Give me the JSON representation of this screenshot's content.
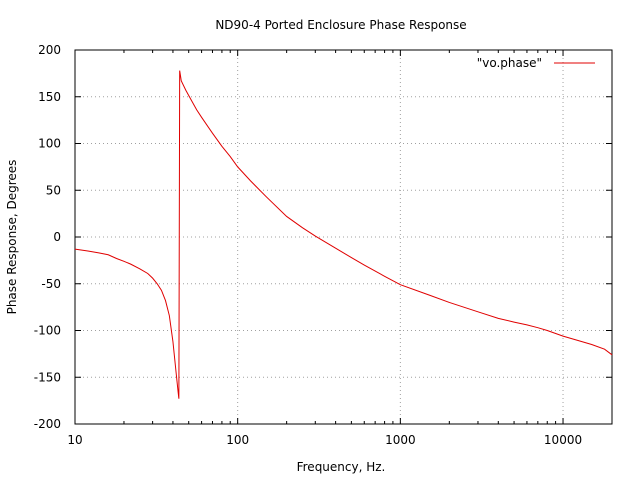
{
  "chart_data": {
    "type": "line",
    "title": "ND90-4 Ported Enclosure Phase Response",
    "xlabel": "Frequency, Hz.",
    "ylabel": "Phase Response, Degrees",
    "xscale": "log",
    "xlim": [
      10,
      20000
    ],
    "ylim": [
      -200,
      200
    ],
    "x_ticks": [
      10,
      100,
      1000,
      10000
    ],
    "x_tick_labels": [
      "10",
      "100",
      "1000",
      "10000"
    ],
    "y_ticks": [
      -200,
      -150,
      -100,
      -50,
      0,
      50,
      100,
      150,
      200
    ],
    "y_tick_labels": [
      "-200",
      "-150",
      "-100",
      "-50",
      "0",
      "50",
      "100",
      "150",
      "200"
    ],
    "grid": true,
    "legend_position": "top-right",
    "series": [
      {
        "name": "\"vo.phase\"",
        "color": "#e00000",
        "x": [
          10,
          12,
          14,
          16,
          18,
          20,
          22,
          25,
          28,
          30,
          32,
          34,
          36,
          38,
          40,
          42,
          43,
          43.5,
          44,
          45,
          48,
          52,
          56,
          60,
          70,
          80,
          90,
          100,
          120,
          150,
          200,
          250,
          300,
          350,
          400,
          500,
          600,
          800,
          1000,
          1500,
          2000,
          3000,
          4000,
          5000,
          6000,
          7000,
          8000,
          10000,
          12000,
          15000,
          18000,
          20000
        ],
        "values": [
          -13,
          -15,
          -17,
          -19,
          -23,
          -26,
          -29,
          -34,
          -39,
          -44,
          -50,
          -57,
          -68,
          -84,
          -112,
          -148,
          -165,
          -173,
          178,
          167,
          157,
          146,
          136,
          128,
          111,
          97,
          86,
          75,
          60,
          43,
          22,
          10,
          1,
          -6,
          -12,
          -22,
          -30,
          -42,
          -51,
          -62,
          -70,
          -80,
          -87,
          -91,
          -94,
          -97,
          -100,
          -106,
          -110,
          -115,
          -120,
          -126
        ]
      }
    ]
  }
}
